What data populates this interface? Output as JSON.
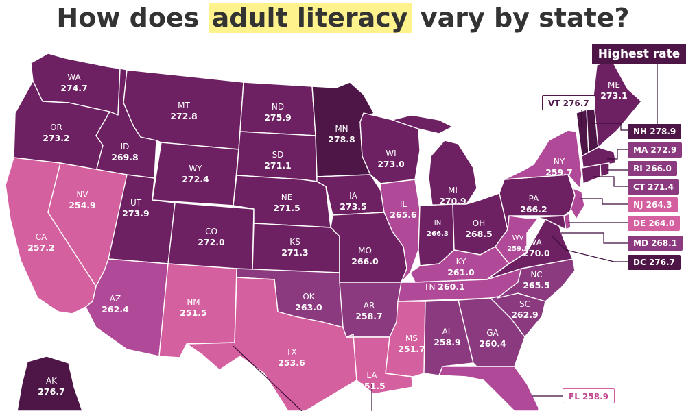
{
  "title": {
    "before": "How does ",
    "highlight": "adult literacy",
    "after": " vary by state?"
  },
  "legend_callout": "Highest rate",
  "colors": {
    "highest": "#4e1547",
    "high": "#6d2163",
    "mid": "#8c3a80",
    "mid_light": "#b04a98",
    "light": "#d560a0",
    "highlight": "#fdf28c"
  },
  "states": [
    {
      "abbr": "WA",
      "value": "274.7"
    },
    {
      "abbr": "OR",
      "value": "273.2"
    },
    {
      "abbr": "CA",
      "value": "257.2"
    },
    {
      "abbr": "ID",
      "value": "269.8"
    },
    {
      "abbr": "NV",
      "value": "254.9"
    },
    {
      "abbr": "MT",
      "value": "272.8"
    },
    {
      "abbr": "WY",
      "value": "272.4"
    },
    {
      "abbr": "UT",
      "value": "273.9"
    },
    {
      "abbr": "CO",
      "value": "272.0"
    },
    {
      "abbr": "AZ",
      "value": "262.4"
    },
    {
      "abbr": "NM",
      "value": "251.5"
    },
    {
      "abbr": "ND",
      "value": "275.9"
    },
    {
      "abbr": "SD",
      "value": "271.1"
    },
    {
      "abbr": "NE",
      "value": "271.5"
    },
    {
      "abbr": "KS",
      "value": "271.3"
    },
    {
      "abbr": "OK",
      "value": "263.0"
    },
    {
      "abbr": "TX",
      "value": "253.6"
    },
    {
      "abbr": "MN",
      "value": "278.8"
    },
    {
      "abbr": "IA",
      "value": "273.5"
    },
    {
      "abbr": "MO",
      "value": "266.0"
    },
    {
      "abbr": "AR",
      "value": "258.7"
    },
    {
      "abbr": "LA",
      "value": "251.5"
    },
    {
      "abbr": "WI",
      "value": "273.0"
    },
    {
      "abbr": "IL",
      "value": "265.6"
    },
    {
      "abbr": "MI",
      "value": "270.9"
    },
    {
      "abbr": "IN",
      "value": "266.3"
    },
    {
      "abbr": "OH",
      "value": "268.5"
    },
    {
      "abbr": "KY",
      "value": "261.0"
    },
    {
      "abbr": "TN",
      "value": "260.1"
    },
    {
      "abbr": "MS",
      "value": "251.7"
    },
    {
      "abbr": "AL",
      "value": "258.9"
    },
    {
      "abbr": "GA",
      "value": "260.4"
    },
    {
      "abbr": "SC",
      "value": "262.9"
    },
    {
      "abbr": "NC",
      "value": "265.5"
    },
    {
      "abbr": "VA",
      "value": "270.0"
    },
    {
      "abbr": "WV",
      "value": "259.8"
    },
    {
      "abbr": "PA",
      "value": "266.2"
    },
    {
      "abbr": "NY",
      "value": "259.7"
    },
    {
      "abbr": "ME",
      "value": "273.1"
    },
    {
      "abbr": "AK",
      "value": "276.7"
    }
  ],
  "callouts": [
    {
      "abbr": "VT",
      "value": "276.7"
    },
    {
      "abbr": "NH",
      "value": "278.9"
    },
    {
      "abbr": "MA",
      "value": "272.9"
    },
    {
      "abbr": "RI",
      "value": "266.0"
    },
    {
      "abbr": "CT",
      "value": "271.4"
    },
    {
      "abbr": "NJ",
      "value": "264.3"
    },
    {
      "abbr": "DE",
      "value": "264.0"
    },
    {
      "abbr": "MD",
      "value": "268.1"
    },
    {
      "abbr": "DC",
      "value": "276.7"
    },
    {
      "abbr": "FL",
      "value": "258.9"
    }
  ]
}
